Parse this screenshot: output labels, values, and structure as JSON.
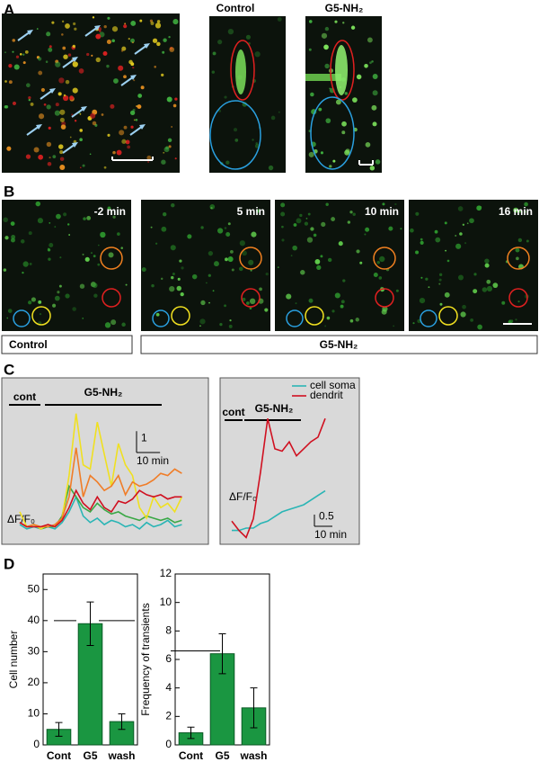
{
  "panel_labels": [
    "A",
    "B",
    "C",
    "D"
  ],
  "panel_a": {
    "control_label": "Control",
    "g5_label": "G5-NH₂"
  },
  "panel_b": {
    "times": [
      "-2 min",
      "5 min",
      "10 min",
      "16 min"
    ],
    "control_label": "Control",
    "g5_label": "G5-NH₂"
  },
  "chart_data": [
    {
      "type": "line",
      "control_label": "cont",
      "treatment_label": "G5-NH₂",
      "y_label": "ΔF/F₀",
      "y_scale_bar": 1,
      "x_scale_bar": {
        "value": 10,
        "label": "10 min"
      },
      "xlim": [
        0,
        70
      ],
      "ylim": [
        -0.3,
        5.6
      ],
      "x": [
        0,
        3,
        6,
        9,
        12,
        15,
        18,
        21,
        24,
        27,
        30,
        33,
        36,
        39,
        42,
        45,
        48,
        51,
        54,
        57,
        60,
        63,
        66,
        69
      ],
      "series": [
        {
          "color": "#2ab5b5",
          "values": [
            0.2,
            0,
            0.1,
            0,
            0.1,
            0,
            0.3,
            0.8,
            1.5,
            0.6,
            0.3,
            0.5,
            0.2,
            0.4,
            0.3,
            0.1,
            0.2,
            0,
            0.3,
            0.1,
            0.2,
            0.4,
            0.1,
            0.2
          ]
        },
        {
          "color": "#3aa845",
          "values": [
            0.3,
            0.1,
            0.2,
            0,
            0.1,
            0.1,
            0.6,
            2,
            1.5,
            1,
            0.8,
            1.2,
            0.9,
            0.7,
            0.8,
            0.6,
            0.5,
            0.4,
            0.6,
            0.5,
            0.4,
            0.5,
            0.3,
            0.4
          ]
        },
        {
          "color": "#f0e020",
          "values": [
            0.8,
            0.1,
            0.2,
            0,
            0.2,
            0.1,
            0.5,
            2.5,
            5.4,
            3,
            2.8,
            5,
            3.5,
            2,
            4,
            3,
            2.5,
            1,
            0.5,
            1.5,
            1,
            1.2,
            0.8,
            1.5
          ]
        },
        {
          "color": "#f07d28",
          "values": [
            0.3,
            0.1,
            0.2,
            0.1,
            0.1,
            0.2,
            0.5,
            1.5,
            3.8,
            1.5,
            2.5,
            2.2,
            1.8,
            2,
            2.5,
            1.6,
            2.2,
            2,
            2.1,
            2.3,
            2.6,
            2.5,
            2.8,
            2.6
          ]
        },
        {
          "color": "#d01020",
          "values": [
            0.3,
            0.1,
            0.1,
            0.1,
            0.2,
            0.1,
            0.4,
            1,
            1.8,
            1.2,
            0.9,
            1.5,
            1,
            0.8,
            1.3,
            1.2,
            1.4,
            1.8,
            1.6,
            1.5,
            1.6,
            1.4,
            1.5,
            1.5
          ]
        }
      ]
    },
    {
      "type": "line",
      "control_label": "cont",
      "treatment_label": "G5-NH₂",
      "y_label": "ΔF/F₀",
      "y_scale_bar": 0.5,
      "x_scale_bar": {
        "value": 10,
        "label": "10 min"
      },
      "xlim": [
        0,
        52
      ],
      "ylim": [
        -0.4,
        5.0
      ],
      "x": [
        0,
        4,
        8,
        12,
        16,
        20,
        24,
        28,
        32,
        36,
        40,
        44,
        48,
        52
      ],
      "series": [
        {
          "name": "cell soma",
          "color": "#2ab5b5",
          "values": [
            0,
            0,
            0.1,
            0.1,
            0.3,
            0.4,
            0.6,
            0.8,
            0.9,
            1.0,
            1.1,
            1.3,
            1.5,
            1.7
          ]
        },
        {
          "name": "dendrit",
          "color": "#d01020",
          "values": [
            0.4,
            0,
            -0.3,
            0.5,
            2.5,
            4.8,
            3.5,
            3.4,
            3.8,
            3.2,
            3.5,
            3.8,
            4.0,
            4.8
          ]
        }
      ]
    },
    {
      "type": "bar",
      "y_label": "Cell number",
      "categories": [
        "Cont",
        "G5",
        "wash"
      ],
      "values": [
        5,
        39,
        7.5
      ],
      "errors": [
        2.2,
        7,
        2.5
      ],
      "color": "#1a9641",
      "ylim": [
        0,
        55
      ],
      "yticks": [
        0,
        10,
        20,
        30,
        40,
        50
      ]
    },
    {
      "type": "bar",
      "y_label": "Frequency of transients",
      "categories": [
        "Cont",
        "G5",
        "wash"
      ],
      "values": [
        0.85,
        6.4,
        2.6
      ],
      "errors": [
        0.4,
        1.4,
        1.4
      ],
      "color": "#1a9641",
      "ylim": [
        0,
        12
      ],
      "yticks": [
        0,
        2,
        4,
        6,
        8,
        10,
        12
      ]
    }
  ]
}
